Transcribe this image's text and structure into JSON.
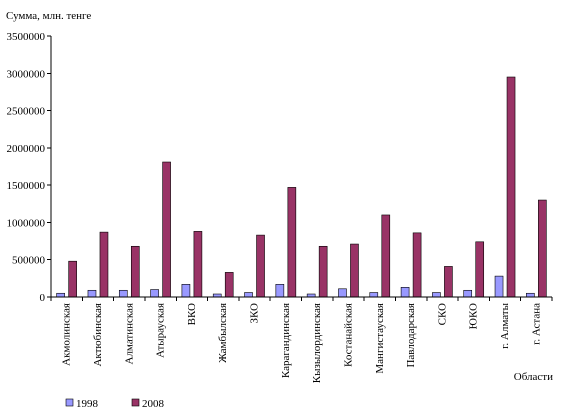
{
  "chart_data": {
    "type": "bar",
    "ylabel": "Сумма, млн. тенге",
    "xlabel": "Области",
    "ylim": [
      0,
      3500000
    ],
    "yticks": [
      0,
      500000,
      1000000,
      1500000,
      2000000,
      2500000,
      3000000,
      3500000
    ],
    "ytick_labels": [
      "0",
      "500000",
      "1000000",
      "1500000",
      "2000000",
      "2500000",
      "3000000",
      "3500000"
    ],
    "grid": false,
    "legend_position": "bottom-left",
    "categories": [
      "Акмолинская",
      "Актюбинская",
      "Алматинская",
      "Атырауская",
      "ВКО",
      "Жамбылская",
      "ЗКО",
      "Карагандинская",
      "Кызылординская",
      "Костанайская",
      "Мангистауская",
      "Павлодарская",
      "СКО",
      "ЮКО",
      "г. Алматы",
      "г. Астана"
    ],
    "series": [
      {
        "name": "1998",
        "color": "#9999ff",
        "values": [
          50000,
          90000,
          90000,
          100000,
          170000,
          40000,
          60000,
          170000,
          40000,
          110000,
          60000,
          130000,
          60000,
          90000,
          280000,
          50000
        ]
      },
      {
        "name": "2008",
        "color": "#993366",
        "values": [
          480000,
          870000,
          680000,
          1810000,
          880000,
          330000,
          830000,
          1470000,
          680000,
          710000,
          1100000,
          860000,
          410000,
          740000,
          2950000,
          1300000
        ]
      }
    ]
  }
}
